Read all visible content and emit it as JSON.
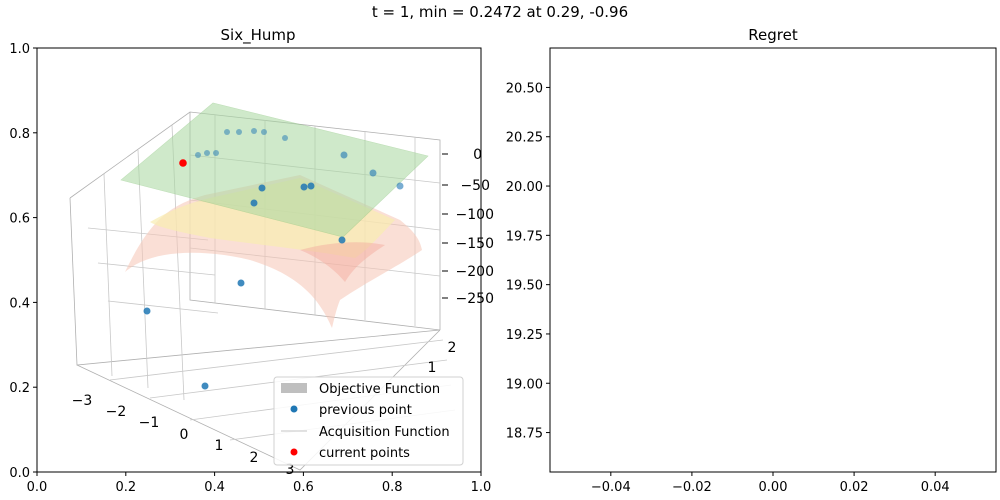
{
  "suptitle": "t = 1, min = 0.2472 at 0.29, -0.96",
  "chart_data": [
    {
      "type": "scatter",
      "projection": "3d",
      "title": "Six_Hump",
      "outer_axes": {
        "xlim": [
          0,
          1
        ],
        "ylim": [
          0,
          1
        ],
        "xticks": [
          "0.0",
          "0.2",
          "0.4",
          "0.6",
          "0.8",
          "1.0"
        ],
        "yticks": [
          "0.0",
          "0.2",
          "0.4",
          "0.6",
          "0.8",
          "1.0"
        ]
      },
      "x3d_ticks": [
        "−3",
        "−2",
        "−1",
        "0",
        "1",
        "2",
        "3"
      ],
      "y3d_ticks": [
        "2",
        "1"
      ],
      "z3d_ticks": [
        "0",
        "−50",
        "−100",
        "−150",
        "−200",
        "−250"
      ],
      "legend": {
        "loc": "lower right",
        "entries": [
          {
            "label": "Objective Function",
            "color": "#bfbfbf",
            "kind": "patch"
          },
          {
            "label": "previous point",
            "color": "#1f77b4",
            "kind": "dot"
          },
          {
            "label": "Acquisition Function",
            "color": "#d8d8d8",
            "kind": "line"
          },
          {
            "label": "current points",
            "color": "#ff0000",
            "kind": "dot"
          }
        ]
      },
      "surfaces": [
        {
          "name": "Objective Function",
          "colormap": "RdYlGn",
          "alpha": 0.3
        },
        {
          "name": "Acquisition Function",
          "color": "#7fbf7f",
          "alpha": 0.3
        }
      ]
    },
    {
      "type": "line",
      "title": "Regret",
      "xlim": [
        -0.055,
        0.055
      ],
      "ylim": [
        18.55,
        20.7
      ],
      "xticks": [
        -0.04,
        -0.02,
        0.0,
        0.02,
        0.04
      ],
      "xtick_labels": [
        "−0.04",
        "−0.02",
        "0.00",
        "0.02",
        "0.04"
      ],
      "yticks": [
        18.75,
        19.0,
        19.25,
        19.5,
        19.75,
        20.0,
        20.25,
        20.5
      ],
      "ytick_labels": [
        "18.75",
        "19.00",
        "19.25",
        "19.50",
        "19.75",
        "20.00",
        "20.25",
        "20.50"
      ],
      "series": []
    }
  ]
}
